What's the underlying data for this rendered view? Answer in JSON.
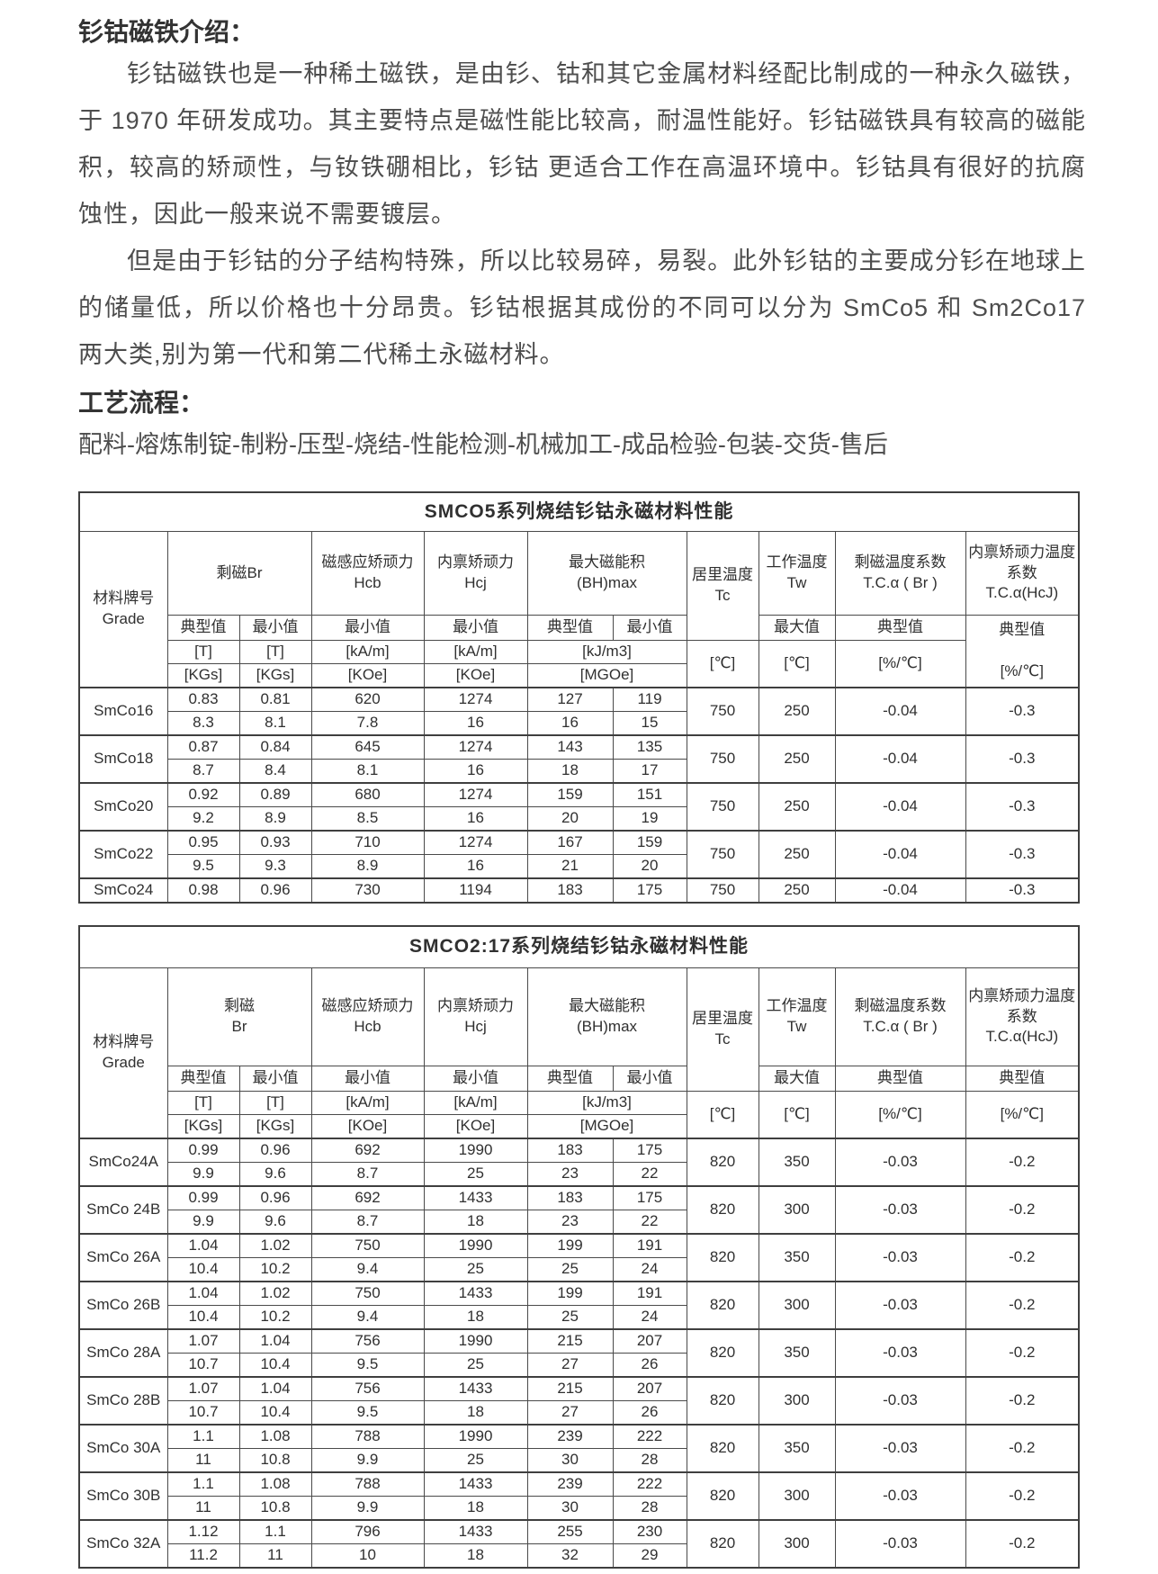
{
  "colors": {
    "heading_text": "#333333",
    "body_text": "#4d4d4d",
    "table_text": "#303030",
    "table_border": "#3f3f3f",
    "background": "#ffffff"
  },
  "page": {
    "intro_heading": "钐钴磁铁介绍：",
    "paragraph1": "钐钴磁铁也是一种稀土磁铁，是由钐、钴和其它金属材料经配比制成的一种永久磁铁，于 1970 年研发成功。其主要特点是磁性能比较高，耐温性能好。钐钴磁铁具有较高的磁能积，较高的矫顽性，与钕铁硼相比，钐钴 更适合工作在高温环境中。钐钴具有很好的抗腐蚀性，因此一般来说不需要镀层。",
    "paragraph2": "但是由于钐钴的分子结构特殊，所以比较易碎，易裂。此外钐钴的主要成分钐在地球上的储量低，所以价格也十分昂贵。钐钴根据其成份的不同可以分为 SmCo5 和 Sm2Co17 两大类,别为第一代和第二代稀土永磁材料。",
    "process_heading": "工艺流程：",
    "process_flow": "配料-熔炼制锭-制粉-压型-烧结-性能检测-机械加工-成品检验-包装-交货-售后"
  },
  "table1": {
    "title": "SMCO5系列烧结钐钴永磁材料性能",
    "header": {
      "grade": "材料牌号\nGrade",
      "br": "剩磁Br",
      "hcb": "磁感应矫顽力\nHcb",
      "hcj": "内禀矫顽力\nHcj",
      "bhmax": "最大磁能积\n(BH)max",
      "tc": "居里温度\nTc",
      "tw": "工作温度\nTw",
      "tca_br": "剩磁温度系数\nT.C.α ( Br )",
      "tca_hcj": "内禀矫顽力温度系数\nT.C.α(HcJ)",
      "typ": "典型值",
      "min": "最小值",
      "max": "最大值",
      "typ_pct": "典型值\n\n[%/℃]"
    },
    "units": {
      "t": "[T]",
      "kgs": "[KGs]",
      "kam": "[kA/m]",
      "koe": "[KOe]",
      "kjm3": "[kJ/m3]",
      "mgoe": "[MGOe]",
      "c": "[℃]",
      "pct": "[%/℃]"
    },
    "rows": [
      {
        "grade": "SmCo16",
        "top": [
          "0.83",
          "0.81",
          "620",
          "1274",
          "127",
          "119"
        ],
        "bottom": [
          "8.3",
          "8.1",
          "7.8",
          "16",
          "16",
          "15"
        ],
        "tc": "750",
        "tw": "250",
        "tca_br": "-0.04",
        "tca_hcj": "-0.3"
      },
      {
        "grade": "SmCo18",
        "top": [
          "0.87",
          "0.84",
          "645",
          "1274",
          "143",
          "135"
        ],
        "bottom": [
          "8.7",
          "8.4",
          "8.1",
          "16",
          "18",
          "17"
        ],
        "tc": "750",
        "tw": "250",
        "tca_br": "-0.04",
        "tca_hcj": "-0.3"
      },
      {
        "grade": "SmCo20",
        "top": [
          "0.92",
          "0.89",
          "680",
          "1274",
          "159",
          "151"
        ],
        "bottom": [
          "9.2",
          "8.9",
          "8.5",
          "16",
          "20",
          "19"
        ],
        "tc": "750",
        "tw": "250",
        "tca_br": "-0.04",
        "tca_hcj": "-0.3"
      },
      {
        "grade": "SmCo22",
        "top": [
          "0.95",
          "0.93",
          "710",
          "1274",
          "167",
          "159"
        ],
        "bottom": [
          "9.5",
          "9.3",
          "8.9",
          "16",
          "21",
          "20"
        ],
        "tc": "750",
        "tw": "250",
        "tca_br": "-0.04",
        "tca_hcj": "-0.3"
      },
      {
        "grade": "SmCo24",
        "top": [
          "0.98",
          "0.96",
          "730",
          "1194",
          "183",
          "175"
        ],
        "bottom": null,
        "tc": "750",
        "tw": "250",
        "tca_br": "-0.04",
        "tca_hcj": "-0.3"
      }
    ]
  },
  "table2": {
    "title": "SMCO2:17系列烧结钐钴永磁材料性能",
    "header": {
      "grade": "材料牌号\nGrade",
      "br": "剩磁\nBr",
      "hcb": "磁感应矫顽力\nHcb",
      "hcj": "内禀矫顽力\nHcj",
      "bhmax": "最大磁能积\n(BH)max",
      "tc": "居里温度\nTc",
      "tw": "工作温度\nTw",
      "tca_br": "剩磁温度系数\nT.C.α ( Br )",
      "tca_hcj": "内禀矫顽力温度系数\nT.C.α(HcJ)",
      "typ": "典型值",
      "min": "最小值",
      "max": "最大值"
    },
    "units": {
      "t": "[T]",
      "kgs": "[KGs]",
      "kam": "[kA/m]",
      "koe": "[KOe]",
      "kjm3": "[kJ/m3]",
      "mgoe": "[MGOe]",
      "c": "[℃]",
      "pct": "[%/℃]"
    },
    "rows": [
      {
        "grade": "SmCo24A",
        "top": [
          "0.99",
          "0.96",
          "692",
          "1990",
          "183",
          "175"
        ],
        "bottom": [
          "9.9",
          "9.6",
          "8.7",
          "25",
          "23",
          "22"
        ],
        "tc": "820",
        "tw": "350",
        "tca_br": "-0.03",
        "tca_hcj": "-0.2"
      },
      {
        "grade": "SmCo 24B",
        "top": [
          "0.99",
          "0.96",
          "692",
          "1433",
          "183",
          "175"
        ],
        "bottom": [
          "9.9",
          "9.6",
          "8.7",
          "18",
          "23",
          "22"
        ],
        "tc": "820",
        "tw": "300",
        "tca_br": "-0.03",
        "tca_hcj": "-0.2"
      },
      {
        "grade": "SmCo 26A",
        "top": [
          "1.04",
          "1.02",
          "750",
          "1990",
          "199",
          "191"
        ],
        "bottom": [
          "10.4",
          "10.2",
          "9.4",
          "25",
          "25",
          "24"
        ],
        "tc": "820",
        "tw": "350",
        "tca_br": "-0.03",
        "tca_hcj": "-0.2"
      },
      {
        "grade": "SmCo 26B",
        "top": [
          "1.04",
          "1.02",
          "750",
          "1433",
          "199",
          "191"
        ],
        "bottom": [
          "10.4",
          "10.2",
          "9.4",
          "18",
          "25",
          "24"
        ],
        "tc": "820",
        "tw": "300",
        "tca_br": "-0.03",
        "tca_hcj": "-0.2"
      },
      {
        "grade": "SmCo 28A",
        "top": [
          "1.07",
          "1.04",
          "756",
          "1990",
          "215",
          "207"
        ],
        "bottom": [
          "10.7",
          "10.4",
          "9.5",
          "25",
          "27",
          "26"
        ],
        "tc": "820",
        "tw": "350",
        "tca_br": "-0.03",
        "tca_hcj": "-0.2"
      },
      {
        "grade": "SmCo 28B",
        "top": [
          "1.07",
          "1.04",
          "756",
          "1433",
          "215",
          "207"
        ],
        "bottom": [
          "10.7",
          "10.4",
          "9.5",
          "18",
          "27",
          "26"
        ],
        "tc": "820",
        "tw": "300",
        "tca_br": "-0.03",
        "tca_hcj": "-0.2"
      },
      {
        "grade": "SmCo 30A",
        "top": [
          "1.1",
          "1.08",
          "788",
          "1990",
          "239",
          "222"
        ],
        "bottom": [
          "11",
          "10.8",
          "9.9",
          "25",
          "30",
          "28"
        ],
        "tc": "820",
        "tw": "350",
        "tca_br": "-0.03",
        "tca_hcj": "-0.2"
      },
      {
        "grade": "SmCo 30B",
        "top": [
          "1.1",
          "1.08",
          "788",
          "1433",
          "239",
          "222"
        ],
        "bottom": [
          "11",
          "10.8",
          "9.9",
          "18",
          "30",
          "28"
        ],
        "tc": "820",
        "tw": "300",
        "tca_br": "-0.03",
        "tca_hcj": "-0.2"
      },
      {
        "grade": "SmCo 32A",
        "top": [
          "1.12",
          "1.1",
          "796",
          "1433",
          "255",
          "230"
        ],
        "bottom": [
          "11.2",
          "11",
          "10",
          "18",
          "32",
          "29"
        ],
        "tc": "820",
        "tw": "300",
        "tca_br": "-0.03",
        "tca_hcj": "-0.2"
      }
    ]
  }
}
